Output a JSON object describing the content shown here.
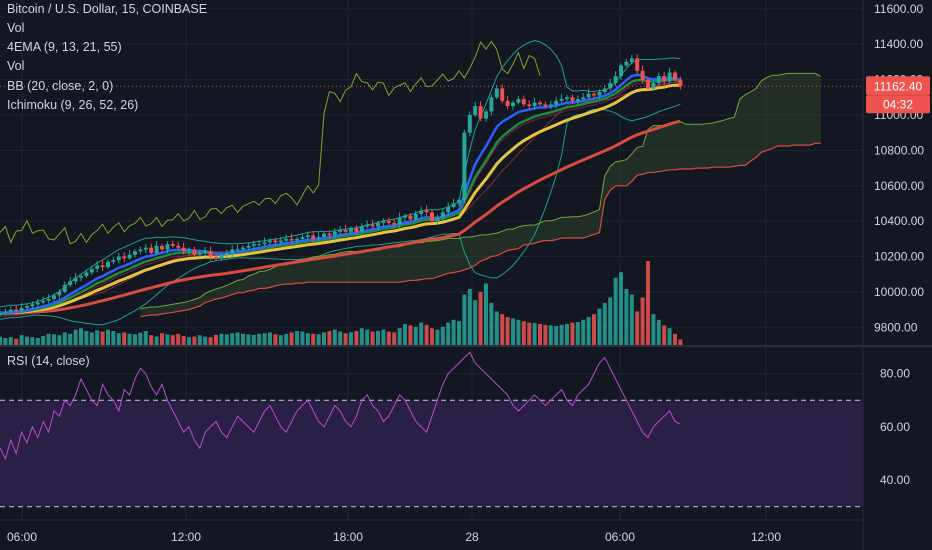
{
  "header": {
    "symbol": "Bitcoin / U.S. Dollar, 15, COINBASE",
    "indicators": [
      "Vol",
      "4EMA (9, 13, 21, 55)",
      "Vol",
      "BB (20, close, 2, 0)",
      "Ichimoku (9, 26, 52, 26)"
    ]
  },
  "rsi_header": "RSI (14, close)",
  "price_badge": {
    "value": "11162.40",
    "countdown": "04:32"
  },
  "colors": {
    "background": "#131722",
    "grid": "#1f2431",
    "text": "#d1d4dc",
    "candle_up": "#26a69a",
    "candle_down": "#ef5350",
    "ema9": "#2962ff",
    "ema13": "#1b8e3a",
    "ema21": "#e4c441",
    "ema55": "#d84c3f",
    "bb": "#1e9e8f",
    "ichimoku_span_a": "#6fa63a",
    "ichimoku_span_b": "#e0473f",
    "ichimoku_lagging": "#7fa52a",
    "rsi": "#b84ecb",
    "rsi_band": "#2a1f45",
    "price_line": "#ef5350"
  },
  "chart_data": [
    {
      "type": "candlestick",
      "title": "Bitcoin / U.S. Dollar, 15, COINBASE",
      "x_tick_labels": [
        "06:00",
        "12:00",
        "18:00",
        "28",
        "06:00",
        "12:00"
      ],
      "y_tick_labels": [
        "9800.00",
        "10000.00",
        "10200.00",
        "10400.00",
        "10600.00",
        "10800.00",
        "11000.00",
        "11200.00",
        "11400.00",
        "11600.00"
      ],
      "ylim": [
        9700,
        11650
      ],
      "grid": true,
      "last_price": 11162.4,
      "close_series": [
        9880,
        9890,
        9900,
        9890,
        9910,
        9920,
        9930,
        9940,
        9950,
        9960,
        9980,
        10000,
        10040,
        10060,
        10080,
        10090,
        10110,
        10130,
        10150,
        10140,
        10170,
        10180,
        10200,
        10190,
        10210,
        10230,
        10240,
        10250,
        10220,
        10260,
        10240,
        10270,
        10260,
        10250,
        10230,
        10240,
        10210,
        10220,
        10230,
        10200,
        10190,
        10210,
        10220,
        10240,
        10240,
        10250,
        10260,
        10270,
        10270,
        10280,
        10290,
        10280,
        10290,
        10300,
        10290,
        10300,
        10310,
        10320,
        10300,
        10310,
        10330,
        10320,
        10340,
        10350,
        10340,
        10360,
        10340,
        10370,
        10380,
        10370,
        10390,
        10400,
        10390,
        10380,
        10420,
        10430,
        10410,
        10440,
        10460,
        10450,
        10400,
        10420,
        10450,
        10480,
        10500,
        10520,
        10900,
        11000,
        11050,
        10980,
        11020,
        11100,
        11150,
        11080,
        11050,
        11070,
        11090,
        11060,
        11050,
        11070,
        11060,
        11050,
        11060,
        11080,
        11090,
        11100,
        11080,
        11090,
        11100,
        11120,
        11110,
        11130,
        11150,
        11180,
        11220,
        11280,
        11300,
        11320,
        11250,
        11200,
        11150,
        11180,
        11220,
        11190,
        11240,
        11200,
        11162
      ],
      "series": [
        {
          "name": "Vol",
          "values": [
            30,
            25,
            28,
            22,
            35,
            30,
            28,
            25,
            32,
            40,
            38,
            35,
            45,
            40,
            55,
            60,
            50,
            45,
            52,
            48,
            55,
            50,
            42,
            45,
            40,
            38,
            44,
            50,
            35,
            30,
            42,
            38,
            35,
            40,
            32,
            28,
            30,
            35,
            30,
            28,
            36,
            40,
            38,
            42,
            45,
            40,
            38,
            36,
            40,
            42,
            45,
            38,
            35,
            40,
            45,
            50,
            48,
            42,
            40,
            38,
            45,
            50,
            55,
            48,
            42,
            45,
            50,
            60,
            55,
            48,
            50,
            55,
            48,
            45,
            60,
            75,
            70,
            65,
            80,
            72,
            60,
            55,
            65,
            80,
            90,
            85,
            180,
            200,
            160,
            190,
            220,
            150,
            120,
            110,
            100,
            95,
            90,
            85,
            80,
            78,
            75,
            72,
            70,
            68,
            72,
            75,
            80,
            82,
            90,
            100,
            110,
            130,
            150,
            170,
            240,
            260,
            200,
            180,
            120,
            170,
            300,
            110,
            90,
            70,
            60,
            40,
            20
          ]
        },
        {
          "name": "RSI (14, close)",
          "values": [
            52,
            48,
            55,
            50,
            58,
            54,
            60,
            56,
            62,
            58,
            66,
            64,
            70,
            68,
            72,
            78,
            74,
            70,
            68,
            76,
            72,
            70,
            66,
            74,
            72,
            78,
            82,
            80,
            75,
            72,
            76,
            70,
            66,
            62,
            58,
            60,
            55,
            52,
            58,
            60,
            62,
            58,
            56,
            60,
            64,
            62,
            60,
            58,
            62,
            66,
            68,
            64,
            60,
            58,
            62,
            66,
            68,
            70,
            66,
            62,
            60,
            64,
            68,
            66,
            62,
            60,
            64,
            70,
            72,
            68,
            66,
            62,
            64,
            68,
            72,
            70,
            66,
            62,
            60,
            58,
            64,
            70,
            76,
            80,
            82,
            84,
            86,
            88,
            84,
            82,
            80,
            78,
            76,
            74,
            72,
            68,
            66,
            68,
            70,
            72,
            70,
            68,
            70,
            72,
            74,
            70,
            68,
            72,
            74,
            76,
            80,
            84,
            86,
            82,
            78,
            74,
            70,
            66,
            62,
            58,
            56,
            60,
            62,
            64,
            66,
            62,
            61
          ]
        }
      ]
    },
    {
      "type": "line",
      "title": "RSI (14, close)",
      "y_tick_labels": [
        "40.00",
        "60.00",
        "80.00"
      ],
      "ylim": [
        25,
        90
      ],
      "bands": [
        30,
        70
      ]
    }
  ]
}
